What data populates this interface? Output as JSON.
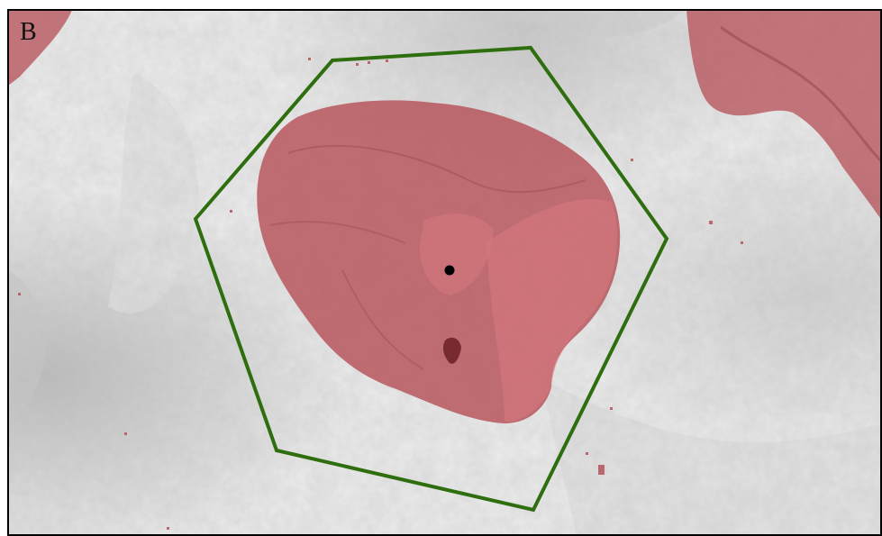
{
  "panel": {
    "letter": "B"
  },
  "colors": {
    "hillshade_base": "#eeeeee",
    "hillshade_shadow": "#bdbdbd",
    "basin_fill": "#b34a52",
    "basin_fill_light": "#d4737a",
    "hexagon_stroke": "#2e6e0f",
    "outlet_point": "#000000",
    "frame": "#000000"
  },
  "map": {
    "features": [
      "hillshade-relief",
      "catchment-area",
      "hexagon-boundary",
      "outlet-point"
    ]
  }
}
